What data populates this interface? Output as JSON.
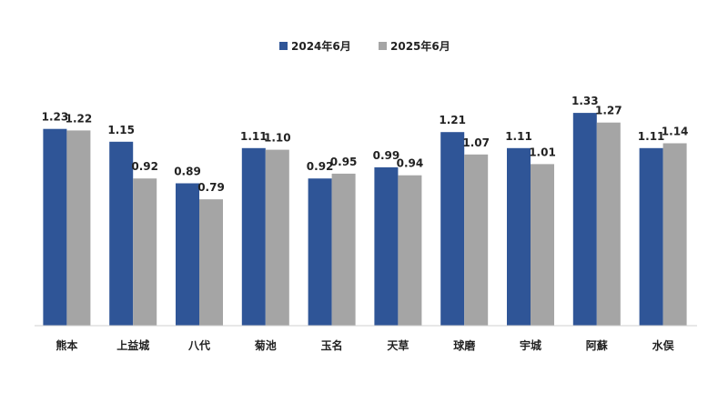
{
  "chart_data": {
    "type": "bar",
    "categories": [
      "熊本",
      "上益城",
      "八代",
      "菊池",
      "玉名",
      "天草",
      "球磨",
      "宇城",
      "阿蘇",
      "水俣"
    ],
    "series": [
      {
        "name": "2024年6月",
        "color": "#2f5597",
        "values": [
          1.23,
          1.15,
          0.89,
          1.11,
          0.92,
          0.99,
          1.21,
          1.11,
          1.33,
          1.11
        ],
        "labels": [
          "1.23",
          "1.15",
          "0.89",
          "1.11",
          "0.92",
          "0.99",
          "1.21",
          "1.11",
          "1.33",
          "1.11"
        ]
      },
      {
        "name": "2025年6月",
        "color": "#a5a5a5",
        "values": [
          1.22,
          0.92,
          0.79,
          1.1,
          0.95,
          0.94,
          1.07,
          1.01,
          1.27,
          1.14
        ],
        "labels": [
          "1.22",
          "0.92",
          "0.79",
          "1.10",
          "0.95",
          "0.94",
          "1.07",
          "1.01",
          "1.27",
          "1.14"
        ]
      }
    ],
    "ylim": [
      0,
      1.45
    ],
    "grid": false,
    "legend_position": "top-center"
  }
}
